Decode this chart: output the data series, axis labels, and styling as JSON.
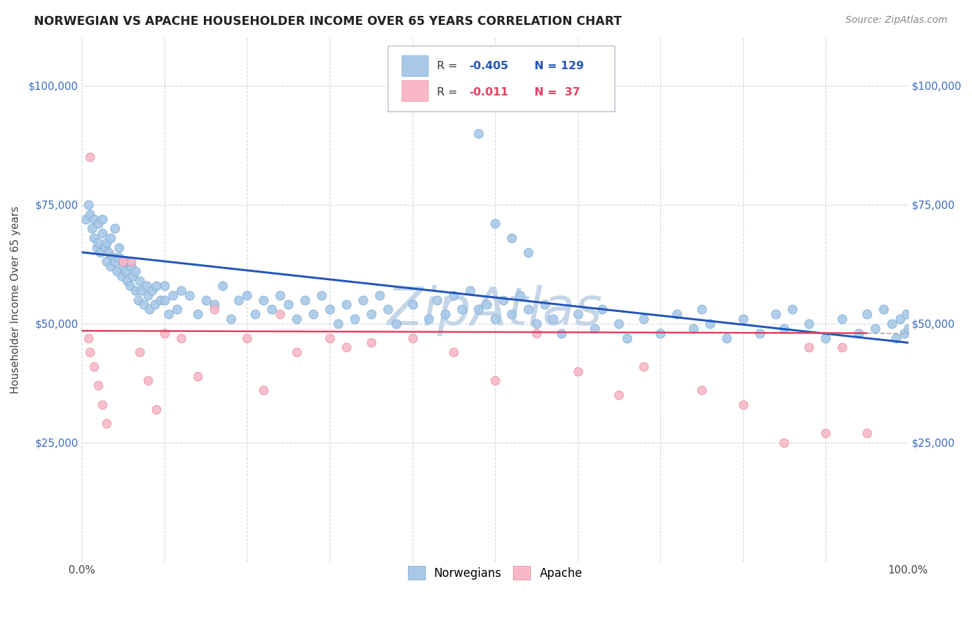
{
  "title": "NORWEGIAN VS APACHE HOUSEHOLDER INCOME OVER 65 YEARS CORRELATION CHART",
  "source": "Source: ZipAtlas.com",
  "ylabel": "Householder Income Over 65 years",
  "background_color": "#ffffff",
  "grid_color": "#d0d8e0",
  "watermark": "ZipAtlas",
  "watermark_color": "#c5d5e8",
  "nor_color": "#a8c8e8",
  "nor_edge": "#7aaad0",
  "nor_trend": "#2255bb",
  "apa_color": "#f8b8c8",
  "apa_edge": "#e88898",
  "apa_trend": "#e04060",
  "marker_size_nor": 90,
  "marker_size_apa": 85,
  "xlim": [
    0,
    1
  ],
  "ylim": [
    0,
    110000
  ],
  "yticks": [
    0,
    25000,
    50000,
    75000,
    100000
  ],
  "ytick_labels": [
    "",
    "$25,000",
    "$50,000",
    "$75,000",
    "$100,000"
  ],
  "xticks": [
    0,
    0.1,
    0.2,
    0.3,
    0.4,
    0.5,
    0.6,
    0.7,
    0.8,
    0.9,
    1.0
  ],
  "xtick_labels": [
    "0.0%",
    "",
    "",
    "",
    "",
    "",
    "",
    "",
    "",
    "",
    "100.0%"
  ],
  "nor_R": -0.405,
  "nor_N": 129,
  "apa_R": -0.011,
  "apa_N": 37,
  "nor_trend_x0": 0.0,
  "nor_trend_y0": 65000,
  "nor_trend_x1": 1.0,
  "nor_trend_y1": 46000,
  "apa_trend_x0": 0.0,
  "apa_trend_y0": 48500,
  "apa_trend_x1": 0.95,
  "apa_trend_y1": 48000,
  "norwegian_x": [
    0.005,
    0.008,
    0.01,
    0.012,
    0.015,
    0.015,
    0.018,
    0.02,
    0.02,
    0.022,
    0.025,
    0.025,
    0.028,
    0.03,
    0.03,
    0.032,
    0.035,
    0.035,
    0.038,
    0.04,
    0.04,
    0.042,
    0.045,
    0.045,
    0.048,
    0.05,
    0.052,
    0.055,
    0.055,
    0.058,
    0.06,
    0.062,
    0.065,
    0.065,
    0.068,
    0.07,
    0.072,
    0.075,
    0.078,
    0.08,
    0.082,
    0.085,
    0.088,
    0.09,
    0.095,
    0.1,
    0.1,
    0.105,
    0.11,
    0.115,
    0.12,
    0.13,
    0.14,
    0.15,
    0.16,
    0.17,
    0.18,
    0.19,
    0.2,
    0.21,
    0.22,
    0.23,
    0.24,
    0.25,
    0.26,
    0.27,
    0.28,
    0.29,
    0.3,
    0.31,
    0.32,
    0.33,
    0.34,
    0.35,
    0.36,
    0.37,
    0.38,
    0.4,
    0.42,
    0.43,
    0.44,
    0.45,
    0.46,
    0.47,
    0.48,
    0.49,
    0.5,
    0.51,
    0.52,
    0.53,
    0.54,
    0.55,
    0.56,
    0.57,
    0.58,
    0.6,
    0.62,
    0.63,
    0.65,
    0.66,
    0.68,
    0.7,
    0.72,
    0.74,
    0.75,
    0.76,
    0.78,
    0.8,
    0.82,
    0.84,
    0.85,
    0.86,
    0.88,
    0.9,
    0.92,
    0.94,
    0.95,
    0.96,
    0.97,
    0.98,
    0.985,
    0.99,
    0.995,
    0.998,
    1.0,
    0.48,
    0.5,
    0.52,
    0.54
  ],
  "norwegian_y": [
    72000,
    75000,
    73000,
    70000,
    68000,
    72000,
    66000,
    71000,
    67000,
    65000,
    69000,
    72000,
    66000,
    63000,
    67000,
    65000,
    62000,
    68000,
    64000,
    70000,
    63000,
    61000,
    66000,
    64000,
    60000,
    62000,
    61000,
    59000,
    63000,
    58000,
    62000,
    60000,
    57000,
    61000,
    55000,
    59000,
    57000,
    54000,
    58000,
    56000,
    53000,
    57000,
    54000,
    58000,
    55000,
    58000,
    55000,
    52000,
    56000,
    53000,
    57000,
    56000,
    52000,
    55000,
    54000,
    58000,
    51000,
    55000,
    56000,
    52000,
    55000,
    53000,
    56000,
    54000,
    51000,
    55000,
    52000,
    56000,
    53000,
    50000,
    54000,
    51000,
    55000,
    52000,
    56000,
    53000,
    50000,
    54000,
    51000,
    55000,
    52000,
    56000,
    53000,
    57000,
    53000,
    54000,
    51000,
    55000,
    52000,
    56000,
    53000,
    50000,
    54000,
    51000,
    48000,
    52000,
    49000,
    53000,
    50000,
    47000,
    51000,
    48000,
    52000,
    49000,
    53000,
    50000,
    47000,
    51000,
    48000,
    52000,
    49000,
    53000,
    50000,
    47000,
    51000,
    48000,
    52000,
    49000,
    53000,
    50000,
    47000,
    51000,
    48000,
    52000,
    49000,
    90000,
    71000,
    68000,
    65000
  ],
  "apache_x": [
    0.008,
    0.01,
    0.015,
    0.02,
    0.025,
    0.03,
    0.06,
    0.07,
    0.08,
    0.09,
    0.1,
    0.12,
    0.14,
    0.16,
    0.2,
    0.22,
    0.24,
    0.26,
    0.3,
    0.32,
    0.35,
    0.4,
    0.45,
    0.5,
    0.55,
    0.6,
    0.65,
    0.68,
    0.75,
    0.8,
    0.85,
    0.88,
    0.9,
    0.92,
    0.95,
    0.01,
    0.05
  ],
  "apache_y": [
    47000,
    44000,
    41000,
    37000,
    33000,
    29000,
    63000,
    44000,
    38000,
    32000,
    48000,
    47000,
    39000,
    53000,
    47000,
    36000,
    52000,
    44000,
    47000,
    45000,
    46000,
    47000,
    44000,
    38000,
    48000,
    40000,
    35000,
    41000,
    36000,
    33000,
    25000,
    45000,
    27000,
    45000,
    27000,
    85000,
    63000
  ]
}
